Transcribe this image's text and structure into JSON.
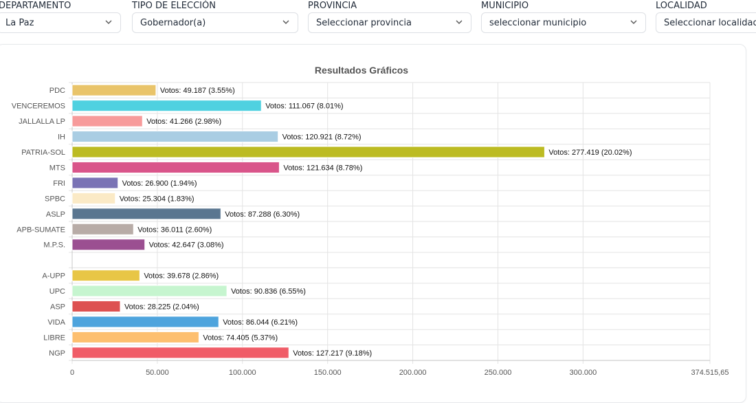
{
  "filters": [
    {
      "label": "DEPARTAMENTO",
      "value": "La Paz"
    },
    {
      "label": "TIPO DE ELECCIÓN",
      "value": "Gobernador(a)"
    },
    {
      "label": "PROVINCIA",
      "value": "Seleccionar provincia"
    },
    {
      "label": "MUNICIPIO",
      "value": "seleccionar municipio"
    },
    {
      "label": "LOCALIDAD",
      "value": "Seleccionar localidad"
    }
  ],
  "chart_data": {
    "type": "bar",
    "orientation": "horizontal",
    "title": "Resultados Gráficos",
    "grid": true,
    "xlim": [
      0,
      374515.65
    ],
    "x_ticks": [
      "0",
      "50.000",
      "100.000",
      "150.000",
      "200.000",
      "250.000",
      "300.000",
      "374.515,65"
    ],
    "x_tick_values": [
      0,
      50000,
      100000,
      150000,
      200000,
      250000,
      300000,
      374515.65
    ],
    "categories": [
      "PDC",
      "VENCEREMOS",
      "JALLALLA LP",
      "IH",
      "PATRIA-SOL",
      "MTS",
      "FRI",
      "SPBC",
      "ASLP",
      "APB-SUMATE",
      "M.P.S.",
      "",
      "A-UPP",
      "UPC",
      "ASP",
      "VIDA",
      "LIBRE",
      "NGP"
    ],
    "values": [
      49187,
      111067,
      41266,
      120921,
      277419,
      121634,
      26900,
      25304,
      87288,
      36011,
      42647,
      null,
      39678,
      90836,
      28225,
      86044,
      74405,
      127217
    ],
    "data_labels": [
      "Votos: 49.187 (3.55%)",
      "Votos: 111.067 (8.01%)",
      "Votos: 41.266 (2.98%)",
      "Votos: 120.921 (8.72%)",
      "Votos: 277.419 (20.02%)",
      "Votos: 121.634 (8.78%)",
      "Votos: 26.900 (1.94%)",
      "Votos: 25.304 (1.83%)",
      "Votos: 87.288 (6.30%)",
      "Votos: 36.011 (2.60%)",
      "Votos: 42.647 (3.08%)",
      "",
      "Votos: 39.678 (2.86%)",
      "Votos: 90.836 (6.55%)",
      "Votos: 28.225 (2.04%)",
      "Votos: 86.044 (6.21%)",
      "Votos: 74.405 (5.37%)",
      "Votos: 127.217 (9.18%)"
    ],
    "colors": [
      "#e9c46a",
      "#4fd1e0",
      "#f79b9b",
      "#a9cde3",
      "#bcbb22",
      "#d9558a",
      "#7a73b5",
      "#fbeac6",
      "#5a7690",
      "#b8aca7",
      "#9b4f91",
      "",
      "#e8c646",
      "#c6f5cf",
      "#dd5151",
      "#4ea4dd",
      "#fdbf6f",
      "#f05c67"
    ]
  }
}
